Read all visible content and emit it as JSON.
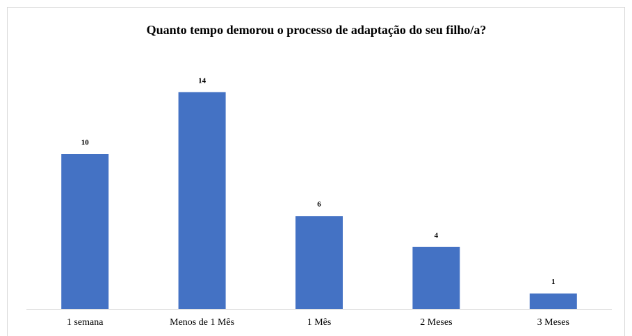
{
  "chart_data": {
    "type": "bar",
    "title": "Quanto tempo demorou o processo de adaptação do seu filho/a?",
    "categories": [
      "1 semana",
      "Menos de 1 Mês",
      "1 Mês",
      "2 Meses",
      "3 Meses"
    ],
    "values": [
      10,
      14,
      6,
      4,
      1
    ],
    "color": "#4472c4"
  }
}
